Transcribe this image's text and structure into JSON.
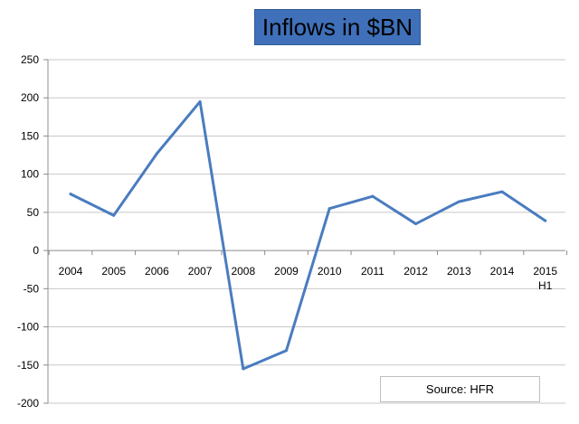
{
  "chart_data": {
    "type": "line",
    "title": "Inflows in $BN",
    "source": "Source: HFR",
    "categories": [
      "2004",
      "2005",
      "2006",
      "2007",
      "2008",
      "2009",
      "2010",
      "2011",
      "2012",
      "2013",
      "2014",
      "2015 H1"
    ],
    "category_labels": [
      [
        "2004"
      ],
      [
        "2005"
      ],
      [
        "2006"
      ],
      [
        "2007"
      ],
      [
        "2008"
      ],
      [
        "2009"
      ],
      [
        "2010"
      ],
      [
        "2011"
      ],
      [
        "2012"
      ],
      [
        "2013"
      ],
      [
        "2014"
      ],
      [
        "2015",
        "H1"
      ]
    ],
    "series": [
      {
        "values": [
          74,
          46,
          127,
          195,
          -155,
          -131,
          55,
          71,
          35,
          64,
          77,
          39
        ]
      }
    ],
    "ylim": [
      -200,
      250
    ],
    "yticks": [
      250,
      200,
      150,
      100,
      50,
      0,
      -50,
      -100,
      -150,
      -200
    ],
    "xlabel": "",
    "ylabel": "",
    "grid": true,
    "colors": {
      "line": "#4a7cbf",
      "title_bg": "#3f70b9",
      "grid": "#c8c8c8",
      "axis": "#8c8c8c"
    }
  }
}
